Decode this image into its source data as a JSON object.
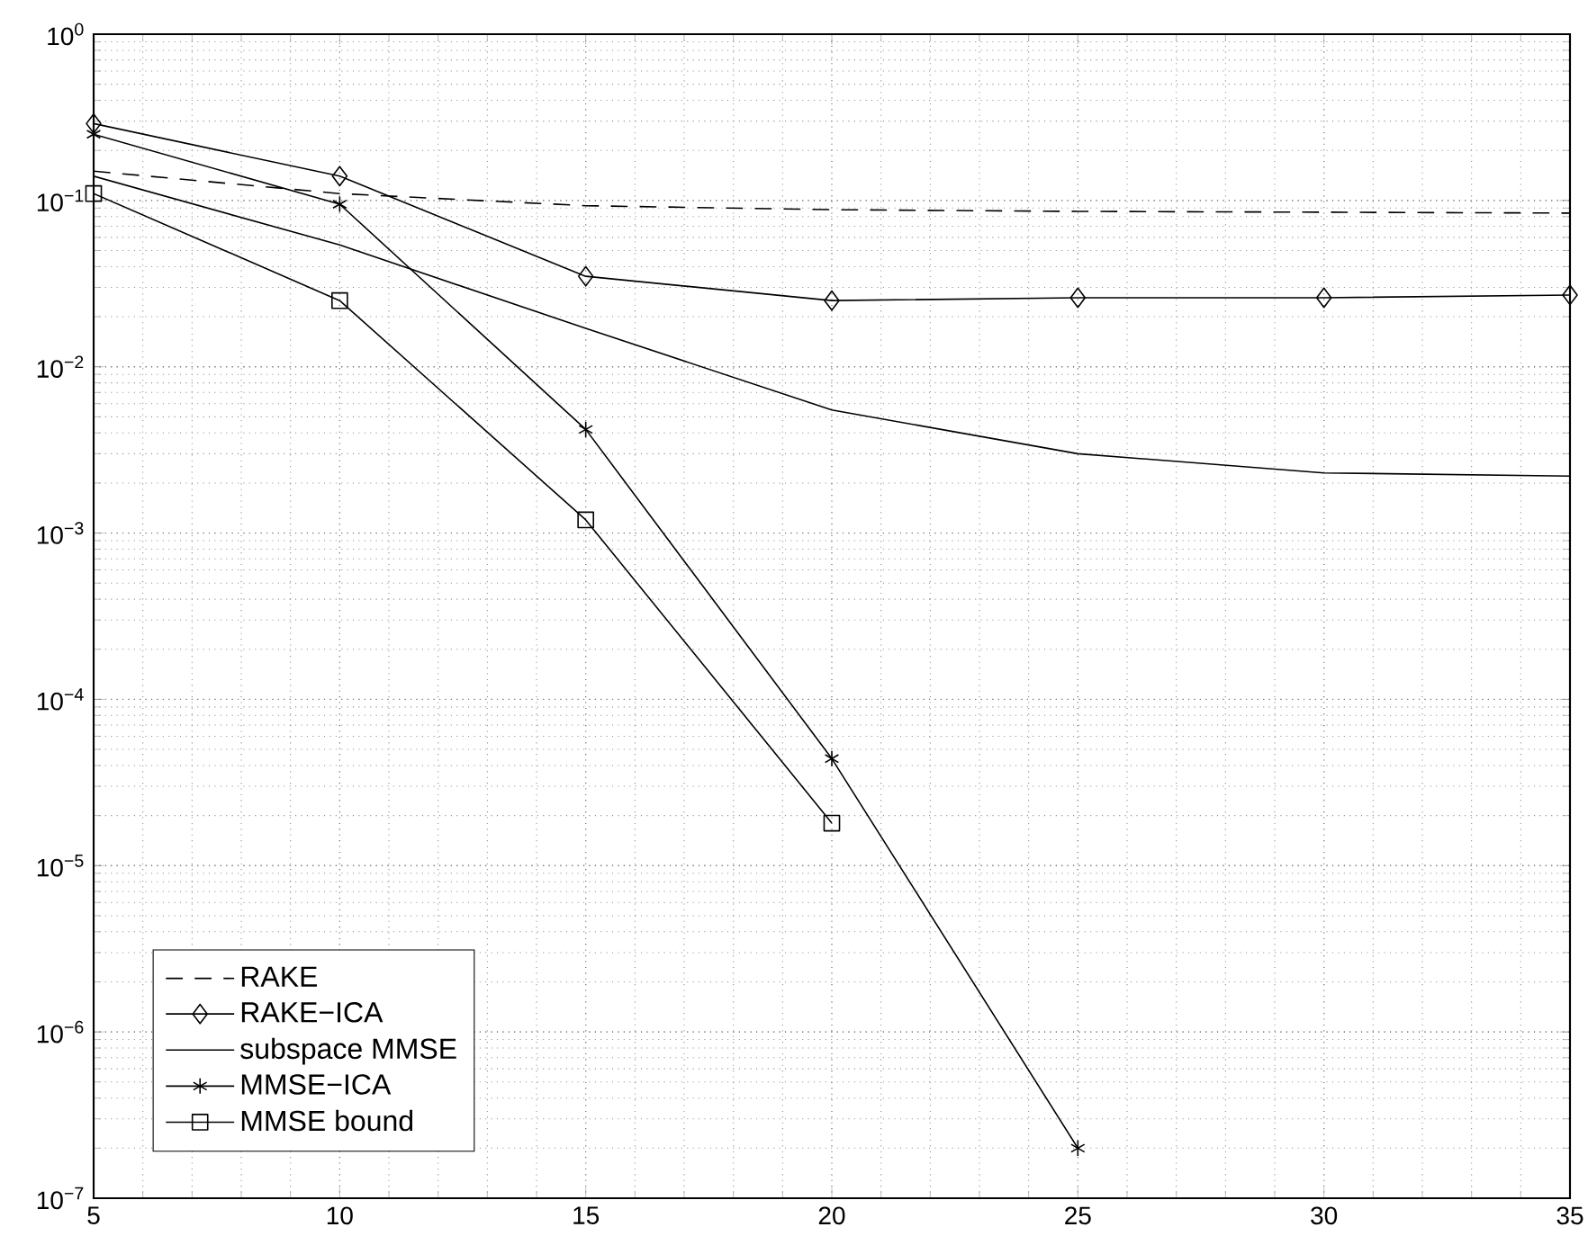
{
  "chart_data": {
    "type": "line",
    "x": [
      5,
      10,
      15,
      20,
      25,
      30,
      35
    ],
    "series": [
      {
        "name": "RAKE",
        "color": "#000000",
        "line_style": "dashed",
        "marker": "none",
        "values": [
          0.15,
          0.11,
          0.093,
          0.088,
          0.086,
          0.085,
          0.084
        ]
      },
      {
        "name": "RAKE−ICA",
        "color": "#000000",
        "line_style": "solid",
        "marker": "diamond",
        "values": [
          0.29,
          0.14,
          0.035,
          0.025,
          0.026,
          0.026,
          0.027
        ]
      },
      {
        "name": "subspace MMSE",
        "color": "#000000",
        "line_style": "solid",
        "marker": "none",
        "values": [
          0.14,
          0.054,
          0.017,
          0.0055,
          0.003,
          0.0023,
          0.0022
        ]
      },
      {
        "name": "MMSE−ICA",
        "color": "#000000",
        "line_style": "solid",
        "marker": "cross",
        "values": [
          0.25,
          0.095,
          0.0042,
          4.4e-05,
          2e-07,
          null,
          null
        ]
      },
      {
        "name": "MMSE bound",
        "color": "#000000",
        "line_style": "solid",
        "marker": "square",
        "values": [
          0.11,
          0.025,
          0.0012,
          1.8e-05,
          null,
          null,
          null
        ]
      }
    ],
    "log": "y",
    "xlim": [
      5,
      35
    ],
    "ylim": [
      1e-07,
      1
    ],
    "xticks": [
      5,
      10,
      15,
      20,
      25,
      30,
      35
    ],
    "yticks": [
      {
        "value": 1e-07,
        "label": "10$^{−7}$"
      },
      {
        "value": 1e-06,
        "label": "10$^{−6}$"
      },
      {
        "value": 1e-05,
        "label": "10$^{−5}$"
      },
      {
        "value": 0.0001,
        "label": "10$^{−4}$"
      },
      {
        "value": 0.001,
        "label": "10$^{−3}$"
      },
      {
        "value": 0.01,
        "label": "10$^{−2}$"
      },
      {
        "value": 0.1,
        "label": "10$^{−1}$"
      },
      {
        "value": 1,
        "label": "10$^{0}$"
      }
    ],
    "grid": true,
    "legend": "bottom left"
  }
}
